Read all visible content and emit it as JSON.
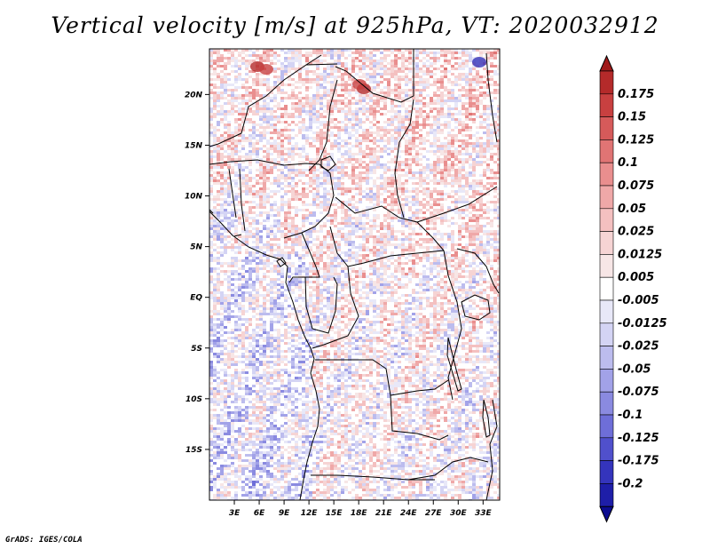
{
  "title": "Vertical velocity [m/s] at 925hPa, VT: 2020032912",
  "credit": "GrADS: IGES/COLA",
  "colors": {
    "positive": [
      "#f7e6e6",
      "#f6d4d4",
      "#f4c0c0",
      "#efa8a8",
      "#e98e8e",
      "#e07474",
      "#d65a5a",
      "#c84040",
      "#b42a2a"
    ],
    "negative": [
      "#e8e8f8",
      "#d4d4f4",
      "#bcbcee",
      "#a2a2e8",
      "#8a8ae0",
      "#6e6ed8",
      "#5050cc",
      "#3434bc",
      "#1e1ea8",
      "#0c0c90"
    ]
  },
  "map": {
    "lon_ticks": [
      "3E",
      "6E",
      "9E",
      "12E",
      "15E",
      "18E",
      "21E",
      "24E",
      "27E",
      "30E",
      "33E"
    ],
    "lat_ticks": [
      "20N",
      "15N",
      "10N",
      "5N",
      "EQ",
      "5S",
      "10S",
      "15S"
    ],
    "lon_range": [
      0,
      35
    ],
    "lat_range": [
      -20,
      24.5
    ]
  },
  "colorbar": {
    "labels": [
      "0.175",
      "0.15",
      "0.125",
      "0.1",
      "0.075",
      "0.05",
      "0.025",
      "0.0125",
      "0.005",
      "-0.005",
      "-0.0125",
      "-0.025",
      "-0.05",
      "-0.075",
      "-0.1",
      "-0.125",
      "-0.175",
      "-0.2"
    ],
    "colors": [
      "#b42a2a",
      "#c84040",
      "#d65a5a",
      "#e07474",
      "#e98e8e",
      "#efa8a8",
      "#f4c0c0",
      "#f6d4d4",
      "#f7e6e6",
      "#ffffff",
      "#e8e8f8",
      "#d4d4f4",
      "#bcbcee",
      "#a2a2e8",
      "#8a8ae0",
      "#6e6ed8",
      "#5050cc",
      "#3434bc",
      "#1e1ea8"
    ],
    "top_arrow_color": "#a01a1a",
    "bottom_arrow_color": "#0c0c90"
  }
}
